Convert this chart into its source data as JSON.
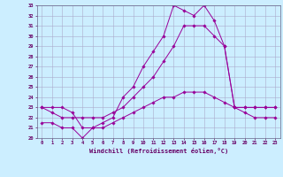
{
  "xlabel": "Windchill (Refroidissement éolien,°C)",
  "ylabel": "",
  "xlim": [
    -0.5,
    23.5
  ],
  "ylim": [
    20,
    33
  ],
  "yticks": [
    20,
    21,
    22,
    23,
    24,
    25,
    26,
    27,
    28,
    29,
    30,
    31,
    32,
    33
  ],
  "xticks": [
    0,
    1,
    2,
    3,
    4,
    5,
    6,
    7,
    8,
    9,
    10,
    11,
    12,
    13,
    14,
    15,
    16,
    17,
    18,
    19,
    20,
    21,
    22,
    23
  ],
  "bg_color": "#cceeff",
  "grid_color": "#aaaacc",
  "line_color": "#990099",
  "line1_x": [
    0,
    1,
    2,
    3,
    4,
    5,
    6,
    7,
    8,
    9,
    10,
    11,
    12,
    13,
    14,
    15,
    16,
    17,
    18,
    19,
    20,
    21,
    22,
    23
  ],
  "line1_y": [
    23,
    23,
    23,
    22.5,
    21,
    21,
    21.5,
    22,
    24,
    25,
    27,
    28.5,
    30,
    33,
    32.5,
    32,
    33,
    31.5,
    29,
    23,
    23,
    23,
    23,
    23
  ],
  "line2_x": [
    0,
    1,
    2,
    3,
    4,
    5,
    6,
    7,
    8,
    9,
    10,
    11,
    12,
    13,
    14,
    15,
    16,
    17,
    18,
    19,
    20,
    21,
    22,
    23
  ],
  "line2_y": [
    23,
    22.5,
    22,
    22,
    22,
    22,
    22,
    22.5,
    23,
    24,
    25,
    26,
    27.5,
    29,
    31,
    31,
    31,
    30,
    29,
    23,
    23,
    23,
    23,
    23
  ],
  "line3_x": [
    0,
    1,
    2,
    3,
    4,
    5,
    6,
    7,
    8,
    9,
    10,
    11,
    12,
    13,
    14,
    15,
    16,
    17,
    18,
    19,
    20,
    21,
    22,
    23
  ],
  "line3_y": [
    21.5,
    21.5,
    21,
    21,
    20,
    21,
    21,
    21.5,
    22,
    22.5,
    23,
    23.5,
    24,
    24,
    24.5,
    24.5,
    24.5,
    24,
    23.5,
    23,
    22.5,
    22,
    22,
    22
  ]
}
